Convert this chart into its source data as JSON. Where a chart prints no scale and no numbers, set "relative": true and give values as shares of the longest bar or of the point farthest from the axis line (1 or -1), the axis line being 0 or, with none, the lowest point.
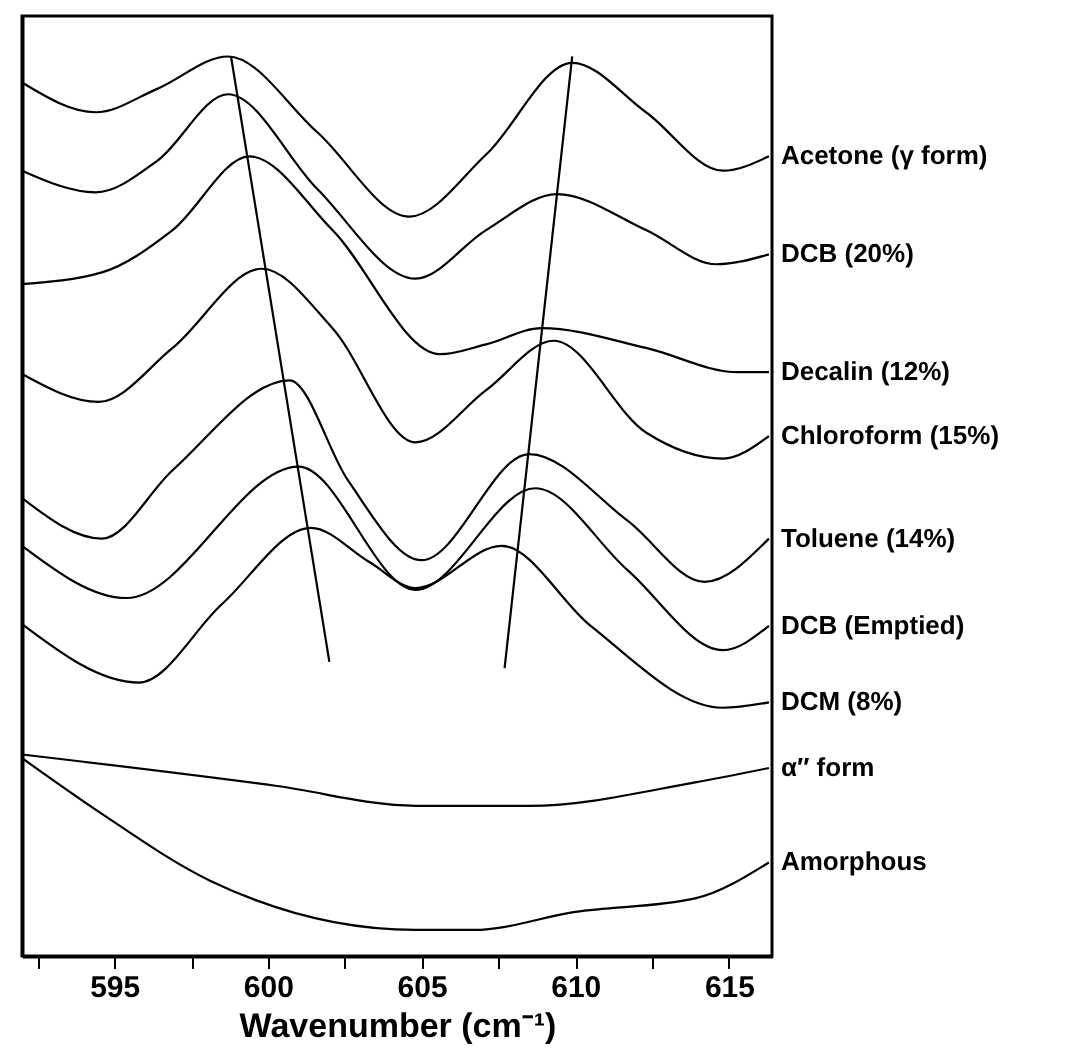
{
  "chart_data": {
    "type": "line",
    "relative": true,
    "xlabel": "Wavenumber (cm⁻¹)",
    "xlim": [
      592,
      616.4
    ],
    "xticks": [
      {
        "value": 592.5,
        "label": null
      },
      595,
      {
        "value": 597.5,
        "label": null
      },
      600,
      {
        "value": 602.5,
        "label": null
      },
      605,
      {
        "value": 607.5,
        "label": null
      },
      610,
      {
        "value": 612.5,
        "label": null
      },
      615
    ],
    "tick_labels": "x",
    "grid": false,
    "marker": "none",
    "line_style": "solid",
    "series": [
      {
        "name": "Acetone (γ form)",
        "color": "#000000",
        "x": [
          592.0,
          594.4,
          596.4,
          598.7,
          601.6,
          604.6,
          607.1,
          609.9,
          612.3,
          614.8,
          616.3
        ],
        "values": [
          0.971,
          0.938,
          0.964,
          1.0,
          0.916,
          0.822,
          0.891,
          0.993,
          0.938,
          0.873,
          0.889
        ]
      },
      {
        "name": "DCB (20%)",
        "color": "#000000",
        "x": [
          592.0,
          594.4,
          596.4,
          598.7,
          601.6,
          604.8,
          607.1,
          609.4,
          612.3,
          614.6,
          616.3
        ],
        "values": [
          0.873,
          0.849,
          0.884,
          0.958,
          0.853,
          0.753,
          0.807,
          0.847,
          0.807,
          0.769,
          0.78
        ]
      },
      {
        "name": "Decalin (12%)",
        "color": "#000000",
        "x": [
          592.0,
          594.6,
          596.9,
          599.4,
          602.1,
          605.6,
          607.1,
          608.9,
          612.3,
          615.3,
          616.3
        ],
        "values": [
          0.747,
          0.76,
          0.807,
          0.889,
          0.807,
          0.669,
          0.68,
          0.698,
          0.676,
          0.649,
          0.649
        ]
      },
      {
        "name": "Chloroform (15%)",
        "color": "#000000",
        "x": [
          592.0,
          594.5,
          596.9,
          599.8,
          602.1,
          604.8,
          607.1,
          609.3,
          612.3,
          614.8,
          616.3
        ],
        "values": [
          0.647,
          0.616,
          0.676,
          0.764,
          0.698,
          0.571,
          0.629,
          0.684,
          0.582,
          0.553,
          0.578
        ]
      },
      {
        "name": "Toluene (14%)",
        "color": "#000000",
        "x": [
          592.0,
          594.6,
          596.9,
          600.7,
          602.6,
          605.0,
          608.5,
          611.7,
          614.2,
          616.3
        ],
        "values": [
          0.509,
          0.464,
          0.54,
          0.64,
          0.529,
          0.44,
          0.558,
          0.484,
          0.416,
          0.464
        ]
      },
      {
        "name": "DCB (Emptied)",
        "color": "#000000",
        "x": [
          592.0,
          595.4,
          601.0,
          604.8,
          608.7,
          611.7,
          614.8,
          616.3
        ],
        "values": [
          0.456,
          0.398,
          0.544,
          0.407,
          0.52,
          0.429,
          0.34,
          0.367
        ]
      },
      {
        "name": "DCM (8%)",
        "color": "#000000",
        "x": [
          592.0,
          595.8,
          598.5,
          601.4,
          603.3,
          604.8,
          607.6,
          610.5,
          614.8,
          616.3
        ],
        "values": [
          0.369,
          0.304,
          0.391,
          0.476,
          0.438,
          0.409,
          0.456,
          0.367,
          0.276,
          0.282
        ]
      },
      {
        "name": "α″ form",
        "color": "#000000",
        "x": [
          592.0,
          600.3,
          604.8,
          608.5,
          613.9,
          616.3
        ],
        "values": [
          0.224,
          0.189,
          0.167,
          0.167,
          0.193,
          0.209
        ]
      },
      {
        "name": "Amorphous",
        "color": "#000000",
        "x": [
          592.0,
          594.6,
          598.1,
          604.8,
          606.7,
          610.0,
          613.9,
          616.3
        ],
        "values": [
          0.22,
          0.158,
          0.084,
          0.029,
          0.029,
          0.049,
          0.064,
          0.104
        ]
      },
      {
        "type": "line",
        "color": "#000000",
        "x": [
          598.8,
          602.0
        ],
        "values": [
          1.0,
          0.327
        ]
      },
      {
        "type": "line",
        "color": "#000000",
        "x": [
          609.9,
          607.7
        ],
        "values": [
          1.0,
          0.32
        ]
      }
    ]
  }
}
